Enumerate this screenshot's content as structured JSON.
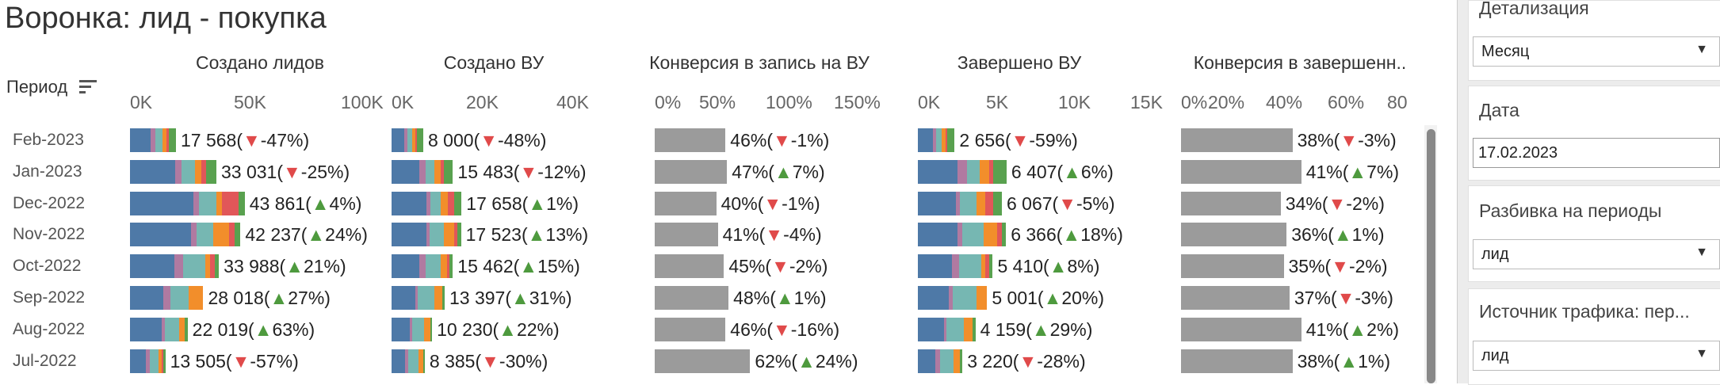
{
  "title": "Воронка: лид - покупка",
  "period_header": "Период",
  "periods": [
    "Feb-2023",
    "Jan-2023",
    "Dec-2022",
    "Nov-2022",
    "Oct-2022",
    "Sep-2022",
    "Aug-2022",
    "Jul-2022"
  ],
  "colors": {
    "segments": [
      "#4e79a7",
      "#b07aa1",
      "#76b7b2",
      "#f28e2b",
      "#e15759",
      "#59a14f"
    ],
    "up": "#4e9a3e",
    "down": "#e04a4a",
    "gray_bar": "#9b9b9b"
  },
  "chart_data": [
    {
      "type": "bar",
      "orientation": "horizontal",
      "stacked": true,
      "title": "Создано лидов",
      "ticks": [
        "0K",
        "50K",
        "100K"
      ],
      "xlim": [
        0,
        100000
      ],
      "categories": [
        "Feb-2023",
        "Jan-2023",
        "Dec-2022",
        "Nov-2022",
        "Oct-2022",
        "Sep-2022",
        "Aug-2022",
        "Jul-2022"
      ],
      "segment_shares": [
        [
          0.45,
          0.1,
          0.15,
          0.1,
          0.05,
          0.15
        ],
        [
          0.52,
          0.08,
          0.15,
          0.08,
          0.05,
          0.12
        ],
        [
          0.55,
          0.05,
          0.15,
          0.05,
          0.15,
          0.05
        ],
        [
          0.55,
          0.05,
          0.15,
          0.15,
          0.05,
          0.05
        ],
        [
          0.5,
          0.1,
          0.25,
          0.05,
          0.05,
          0.05
        ],
        [
          0.45,
          0.1,
          0.25,
          0.2,
          0.0,
          0.0
        ],
        [
          0.55,
          0.05,
          0.25,
          0.1,
          0.0,
          0.05
        ],
        [
          0.45,
          0.1,
          0.25,
          0.1,
          0.05,
          0.05
        ]
      ],
      "totals": [
        17568,
        33031,
        43861,
        42237,
        33988,
        28018,
        22019,
        13505
      ],
      "labels": [
        "17 568",
        "33 031",
        "43 861",
        "42 237",
        "33 988",
        "28 018",
        "22 019",
        "13 505"
      ],
      "changes": [
        {
          "dir": "down",
          "text": "-47%"
        },
        {
          "dir": "down",
          "text": "-25%"
        },
        {
          "dir": "up",
          "text": "4%"
        },
        {
          "dir": "up",
          "text": "24%"
        },
        {
          "dir": "up",
          "text": "21%"
        },
        {
          "dir": "up",
          "text": "27%"
        },
        {
          "dir": "up",
          "text": "63%"
        },
        {
          "dir": "down",
          "text": "-57%"
        }
      ]
    },
    {
      "type": "bar",
      "orientation": "horizontal",
      "stacked": true,
      "title": "Создано ВУ",
      "ticks": [
        "0K",
        "20K",
        "40K"
      ],
      "xlim": [
        0,
        50000
      ],
      "categories": [
        "Feb-2023",
        "Jan-2023",
        "Dec-2022",
        "Nov-2022",
        "Oct-2022",
        "Sep-2022",
        "Aug-2022",
        "Jul-2022"
      ],
      "segment_shares": [
        [
          0.4,
          0.1,
          0.15,
          0.1,
          0.05,
          0.2
        ],
        [
          0.45,
          0.1,
          0.15,
          0.1,
          0.05,
          0.15
        ],
        [
          0.5,
          0.05,
          0.15,
          0.1,
          0.1,
          0.1
        ],
        [
          0.5,
          0.05,
          0.2,
          0.15,
          0.05,
          0.05
        ],
        [
          0.45,
          0.1,
          0.25,
          0.1,
          0.05,
          0.05
        ],
        [
          0.45,
          0.05,
          0.3,
          0.15,
          0.0,
          0.05
        ],
        [
          0.45,
          0.05,
          0.3,
          0.15,
          0.0,
          0.05
        ],
        [
          0.4,
          0.1,
          0.3,
          0.15,
          0.0,
          0.05
        ]
      ],
      "totals": [
        8000,
        15483,
        17658,
        17523,
        15462,
        13397,
        10230,
        8385
      ],
      "labels": [
        "8 000",
        "15 483",
        "17 658",
        "17 523",
        "15 462",
        "13 397",
        "10 230",
        "8 385"
      ],
      "changes": [
        {
          "dir": "down",
          "text": "-48%"
        },
        {
          "dir": "down",
          "text": "-12%"
        },
        {
          "dir": "up",
          "text": "1%"
        },
        {
          "dir": "up",
          "text": "13%"
        },
        {
          "dir": "up",
          "text": "15%"
        },
        {
          "dir": "up",
          "text": "31%"
        },
        {
          "dir": "up",
          "text": "22%"
        },
        {
          "dir": "down",
          "text": "-30%"
        }
      ]
    },
    {
      "type": "bar",
      "orientation": "horizontal",
      "stacked": false,
      "title": "Конверсия в запись на ВУ",
      "ticks": [
        "0%",
        "50%",
        "100%",
        "150%"
      ],
      "xlim": [
        0,
        170
      ],
      "categories": [
        "Feb-2023",
        "Jan-2023",
        "Dec-2022",
        "Nov-2022",
        "Oct-2022",
        "Sep-2022",
        "Aug-2022",
        "Jul-2022"
      ],
      "values": [
        46,
        47,
        40,
        41,
        45,
        48,
        46,
        62
      ],
      "labels": [
        "46%",
        "47%",
        "40%",
        "41%",
        "45%",
        "48%",
        "46%",
        "62%"
      ],
      "changes": [
        {
          "dir": "down",
          "text": "-1%"
        },
        {
          "dir": "up",
          "text": "7%"
        },
        {
          "dir": "down",
          "text": "-1%"
        },
        {
          "dir": "down",
          "text": "-4%"
        },
        {
          "dir": "down",
          "text": "-2%"
        },
        {
          "dir": "up",
          "text": "1%"
        },
        {
          "dir": "down",
          "text": "-16%"
        },
        {
          "dir": "up",
          "text": "24%"
        }
      ]
    },
    {
      "type": "bar",
      "orientation": "horizontal",
      "stacked": true,
      "title": "Завершено ВУ",
      "ticks": [
        "0K",
        "5K",
        "10K",
        "15K"
      ],
      "xlim": [
        0,
        15000
      ],
      "categories": [
        "Feb-2023",
        "Jan-2023",
        "Dec-2022",
        "Nov-2022",
        "Oct-2022",
        "Sep-2022",
        "Aug-2022",
        "Jul-2022"
      ],
      "segment_shares": [
        [
          0.4,
          0.1,
          0.15,
          0.1,
          0.05,
          0.2
        ],
        [
          0.45,
          0.1,
          0.15,
          0.1,
          0.05,
          0.15
        ],
        [
          0.45,
          0.05,
          0.2,
          0.1,
          0.1,
          0.1
        ],
        [
          0.45,
          0.05,
          0.25,
          0.15,
          0.05,
          0.05
        ],
        [
          0.45,
          0.1,
          0.3,
          0.05,
          0.05,
          0.05
        ],
        [
          0.45,
          0.05,
          0.35,
          0.15,
          0.0,
          0.0
        ],
        [
          0.45,
          0.05,
          0.3,
          0.15,
          0.0,
          0.05
        ],
        [
          0.4,
          0.1,
          0.3,
          0.15,
          0.0,
          0.05
        ]
      ],
      "totals": [
        2656,
        6407,
        6067,
        6366,
        5410,
        5001,
        4159,
        3220
      ],
      "labels": [
        "2 656",
        "6 407",
        "6 067",
        "6 366",
        "5 410",
        "5 001",
        "4 159",
        "3 220"
      ],
      "changes": [
        {
          "dir": "down",
          "text": "-59%"
        },
        {
          "dir": "up",
          "text": "6%"
        },
        {
          "dir": "down",
          "text": "-5%"
        },
        {
          "dir": "up",
          "text": "18%"
        },
        {
          "dir": "up",
          "text": "8%"
        },
        {
          "dir": "up",
          "text": "20%"
        },
        {
          "dir": "up",
          "text": "29%"
        },
        {
          "dir": "down",
          "text": "-28%"
        }
      ]
    },
    {
      "type": "bar",
      "orientation": "horizontal",
      "stacked": false,
      "title": "Конверсия в завершенн..",
      "ticks": [
        "0%",
        "20%",
        "40%",
        "60%",
        "80"
      ],
      "xlim": [
        0,
        80
      ],
      "categories": [
        "Feb-2023",
        "Jan-2023",
        "Dec-2022",
        "Nov-2022",
        "Oct-2022",
        "Sep-2022",
        "Aug-2022",
        "Jul-2022"
      ],
      "values": [
        38,
        41,
        34,
        36,
        35,
        37,
        41,
        38
      ],
      "labels": [
        "38%",
        "41%",
        "34%",
        "36%",
        "35%",
        "37%",
        "41%",
        "38%"
      ],
      "changes": [
        {
          "dir": "down",
          "text": "-3%"
        },
        {
          "dir": "up",
          "text": "7%"
        },
        {
          "dir": "down",
          "text": "-2%"
        },
        {
          "dir": "up",
          "text": "1%"
        },
        {
          "dir": "down",
          "text": "-2%"
        },
        {
          "dir": "down",
          "text": "-3%"
        },
        {
          "dir": "up",
          "text": "2%"
        },
        {
          "dir": "up",
          "text": "1%"
        }
      ]
    }
  ],
  "controls": [
    {
      "label": "Детализация",
      "type": "dropdown",
      "value": "Месяц"
    },
    {
      "label": "Дата",
      "type": "date",
      "value": "17.02.2023"
    },
    {
      "label": "Разбивка на периоды",
      "type": "dropdown",
      "value": "лид"
    },
    {
      "label": "Источник трафика: пер...",
      "type": "dropdown",
      "value": "лид"
    }
  ]
}
